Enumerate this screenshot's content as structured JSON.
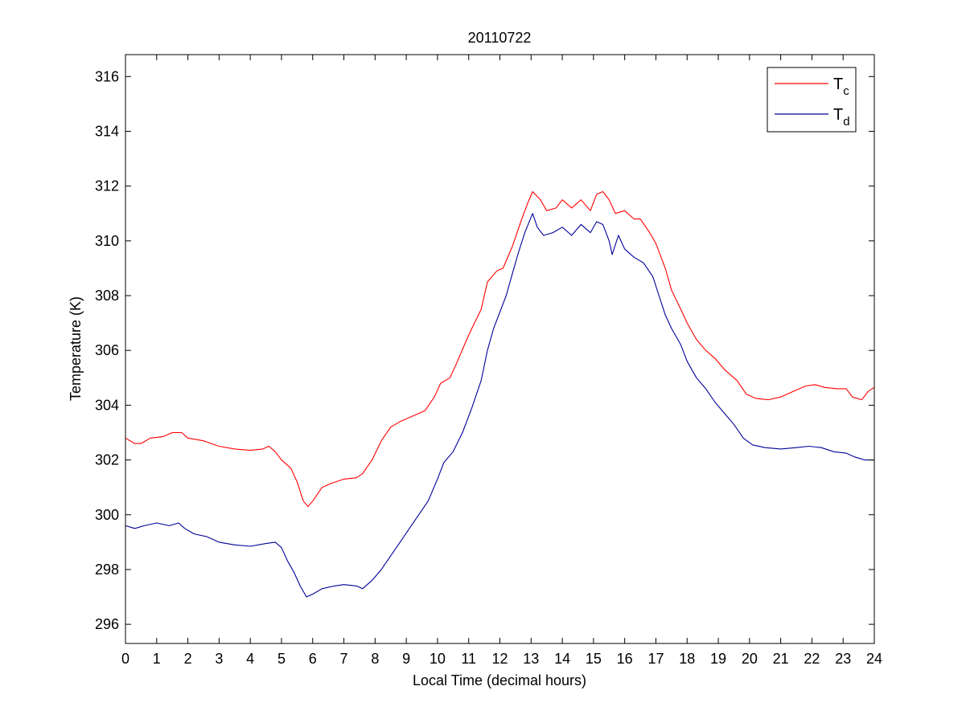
{
  "chart_data": {
    "type": "line",
    "title": "20110722",
    "xlabel": "Local Time (decimal hours)",
    "ylabel": "Temperature (K)",
    "xlim": [
      0,
      24
    ],
    "ylim": [
      295.3,
      316.8
    ],
    "xticks": [
      0,
      1,
      2,
      3,
      4,
      5,
      6,
      7,
      8,
      9,
      10,
      11,
      12,
      13,
      14,
      15,
      16,
      17,
      18,
      19,
      20,
      21,
      22,
      23,
      24
    ],
    "yticks": [
      296,
      298,
      300,
      302,
      304,
      306,
      308,
      310,
      312,
      314,
      316
    ],
    "grid": false,
    "legend_position": "top-right",
    "series": [
      {
        "name": "T",
        "subscript": "c",
        "color": "#ff0000",
        "points": [
          [
            0,
            302.8
          ],
          [
            0.3,
            302.6
          ],
          [
            0.5,
            302.6
          ],
          [
            0.8,
            302.8
          ],
          [
            1.2,
            302.85
          ],
          [
            1.5,
            303.0
          ],
          [
            1.8,
            303.0
          ],
          [
            2.0,
            302.8
          ],
          [
            2.5,
            302.7
          ],
          [
            3.0,
            302.5
          ],
          [
            3.5,
            302.4
          ],
          [
            4.0,
            302.35
          ],
          [
            4.4,
            302.4
          ],
          [
            4.6,
            302.5
          ],
          [
            4.8,
            302.3
          ],
          [
            5.0,
            302.0
          ],
          [
            5.3,
            301.7
          ],
          [
            5.5,
            301.2
          ],
          [
            5.7,
            300.5
          ],
          [
            5.85,
            300.3
          ],
          [
            6.0,
            300.5
          ],
          [
            6.3,
            301.0
          ],
          [
            6.6,
            301.15
          ],
          [
            7.0,
            301.3
          ],
          [
            7.4,
            301.35
          ],
          [
            7.6,
            301.5
          ],
          [
            7.9,
            302.0
          ],
          [
            8.2,
            302.7
          ],
          [
            8.5,
            303.2
          ],
          [
            8.8,
            303.4
          ],
          [
            9.2,
            303.6
          ],
          [
            9.6,
            303.8
          ],
          [
            9.9,
            304.3
          ],
          [
            10.1,
            304.8
          ],
          [
            10.4,
            305.0
          ],
          [
            10.6,
            305.5
          ],
          [
            10.9,
            306.3
          ],
          [
            11.1,
            306.8
          ],
          [
            11.4,
            307.5
          ],
          [
            11.6,
            308.5
          ],
          [
            11.9,
            308.9
          ],
          [
            12.1,
            309.0
          ],
          [
            12.4,
            309.8
          ],
          [
            12.7,
            310.8
          ],
          [
            12.9,
            311.4
          ],
          [
            13.05,
            311.8
          ],
          [
            13.3,
            311.5
          ],
          [
            13.5,
            311.1
          ],
          [
            13.8,
            311.2
          ],
          [
            14.0,
            311.5
          ],
          [
            14.3,
            311.2
          ],
          [
            14.6,
            311.5
          ],
          [
            14.9,
            311.1
          ],
          [
            15.1,
            311.7
          ],
          [
            15.3,
            311.8
          ],
          [
            15.5,
            311.5
          ],
          [
            15.7,
            311.0
          ],
          [
            16.0,
            311.1
          ],
          [
            16.3,
            310.8
          ],
          [
            16.5,
            310.8
          ],
          [
            16.8,
            310.3
          ],
          [
            17.0,
            309.9
          ],
          [
            17.3,
            309.0
          ],
          [
            17.5,
            308.2
          ],
          [
            17.8,
            307.5
          ],
          [
            18.0,
            307.0
          ],
          [
            18.3,
            306.4
          ],
          [
            18.6,
            306.0
          ],
          [
            18.9,
            305.7
          ],
          [
            19.2,
            305.3
          ],
          [
            19.6,
            304.9
          ],
          [
            19.9,
            304.4
          ],
          [
            20.2,
            304.25
          ],
          [
            20.6,
            304.2
          ],
          [
            21.0,
            304.3
          ],
          [
            21.4,
            304.5
          ],
          [
            21.8,
            304.7
          ],
          [
            22.1,
            304.75
          ],
          [
            22.4,
            304.65
          ],
          [
            22.8,
            304.6
          ],
          [
            23.1,
            304.6
          ],
          [
            23.3,
            304.3
          ],
          [
            23.6,
            304.2
          ],
          [
            23.8,
            304.5
          ],
          [
            24.0,
            304.65
          ]
        ]
      },
      {
        "name": "T",
        "subscript": "d",
        "color": "#000099",
        "points": [
          [
            0,
            299.6
          ],
          [
            0.3,
            299.5
          ],
          [
            0.6,
            299.6
          ],
          [
            1.0,
            299.7
          ],
          [
            1.4,
            299.6
          ],
          [
            1.7,
            299.7
          ],
          [
            1.9,
            299.5
          ],
          [
            2.2,
            299.3
          ],
          [
            2.6,
            299.2
          ],
          [
            3.0,
            299.0
          ],
          [
            3.5,
            298.9
          ],
          [
            4.0,
            298.85
          ],
          [
            4.5,
            298.95
          ],
          [
            4.8,
            299.0
          ],
          [
            5.0,
            298.8
          ],
          [
            5.2,
            298.3
          ],
          [
            5.4,
            297.9
          ],
          [
            5.6,
            297.4
          ],
          [
            5.8,
            297.0
          ],
          [
            6.0,
            297.1
          ],
          [
            6.3,
            297.3
          ],
          [
            6.7,
            297.4
          ],
          [
            7.0,
            297.45
          ],
          [
            7.4,
            297.4
          ],
          [
            7.6,
            297.3
          ],
          [
            7.9,
            297.6
          ],
          [
            8.2,
            298.0
          ],
          [
            8.5,
            298.5
          ],
          [
            8.8,
            299.0
          ],
          [
            9.1,
            299.5
          ],
          [
            9.4,
            300.0
          ],
          [
            9.7,
            300.5
          ],
          [
            10.0,
            301.3
          ],
          [
            10.2,
            301.9
          ],
          [
            10.5,
            302.3
          ],
          [
            10.8,
            303.0
          ],
          [
            11.1,
            303.9
          ],
          [
            11.4,
            304.9
          ],
          [
            11.6,
            306.0
          ],
          [
            11.8,
            306.8
          ],
          [
            12.0,
            307.4
          ],
          [
            12.2,
            308.0
          ],
          [
            12.4,
            308.8
          ],
          [
            12.6,
            309.6
          ],
          [
            12.8,
            310.3
          ],
          [
            13.05,
            311.0
          ],
          [
            13.2,
            310.5
          ],
          [
            13.4,
            310.2
          ],
          [
            13.7,
            310.3
          ],
          [
            14.0,
            310.5
          ],
          [
            14.3,
            310.2
          ],
          [
            14.6,
            310.6
          ],
          [
            14.9,
            310.3
          ],
          [
            15.1,
            310.7
          ],
          [
            15.3,
            310.6
          ],
          [
            15.5,
            310.0
          ],
          [
            15.6,
            309.5
          ],
          [
            15.8,
            310.2
          ],
          [
            16.0,
            309.7
          ],
          [
            16.3,
            309.4
          ],
          [
            16.6,
            309.2
          ],
          [
            16.9,
            308.7
          ],
          [
            17.1,
            308.0
          ],
          [
            17.3,
            307.3
          ],
          [
            17.5,
            306.8
          ],
          [
            17.8,
            306.2
          ],
          [
            18.0,
            305.6
          ],
          [
            18.3,
            305.0
          ],
          [
            18.6,
            304.6
          ],
          [
            18.9,
            304.1
          ],
          [
            19.2,
            303.7
          ],
          [
            19.5,
            303.3
          ],
          [
            19.8,
            302.8
          ],
          [
            20.1,
            302.55
          ],
          [
            20.5,
            302.45
          ],
          [
            21.0,
            302.4
          ],
          [
            21.5,
            302.45
          ],
          [
            21.9,
            302.5
          ],
          [
            22.3,
            302.45
          ],
          [
            22.7,
            302.3
          ],
          [
            23.1,
            302.25
          ],
          [
            23.4,
            302.1
          ],
          [
            23.7,
            302.0
          ],
          [
            24.0,
            302.0
          ]
        ]
      }
    ]
  }
}
